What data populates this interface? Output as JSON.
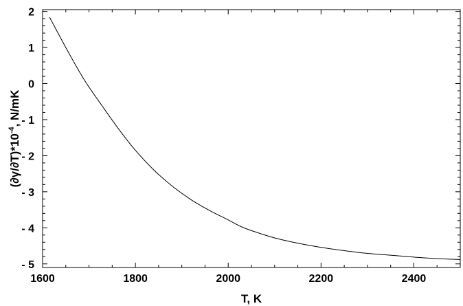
{
  "chart_data": {
    "type": "line",
    "title": "",
    "xlabel": "T, K",
    "ylabel": "(∂γ/∂T)*10",
    "ylabel_exponent": "-4",
    "ylabel_unit": ", N/mK",
    "xlim": [
      1600,
      2500
    ],
    "ylim": [
      -5.1,
      2.05
    ],
    "x_ticks": [
      1600,
      1800,
      2000,
      2200,
      2400
    ],
    "x_tick_labels": [
      "1600",
      "1800",
      "2000",
      "2200",
      "2400"
    ],
    "y_ticks": [
      2,
      1,
      0,
      -1,
      -2,
      -3,
      -4,
      -5
    ],
    "y_tick_labels": [
      "2",
      "1",
      "0",
      "- 1",
      "- 2",
      "- 3",
      "- 4",
      "- 5"
    ],
    "grid": false,
    "series": [
      {
        "color": "#000000",
        "x": [
          1615,
          1650,
          1690,
          1730,
          1765,
          1800,
          1840,
          1880,
          1920,
          1960,
          2000,
          2030,
          2060,
          2100,
          2140,
          2180,
          2220,
          2260,
          2300,
          2340,
          2380,
          2420,
          2460,
          2500
        ],
        "y": [
          1.84,
          1.0,
          0.1,
          -0.65,
          -1.28,
          -1.85,
          -2.4,
          -2.85,
          -3.22,
          -3.52,
          -3.78,
          -3.98,
          -4.12,
          -4.28,
          -4.4,
          -4.5,
          -4.58,
          -4.65,
          -4.71,
          -4.75,
          -4.79,
          -4.83,
          -4.86,
          -4.88
        ]
      }
    ]
  }
}
